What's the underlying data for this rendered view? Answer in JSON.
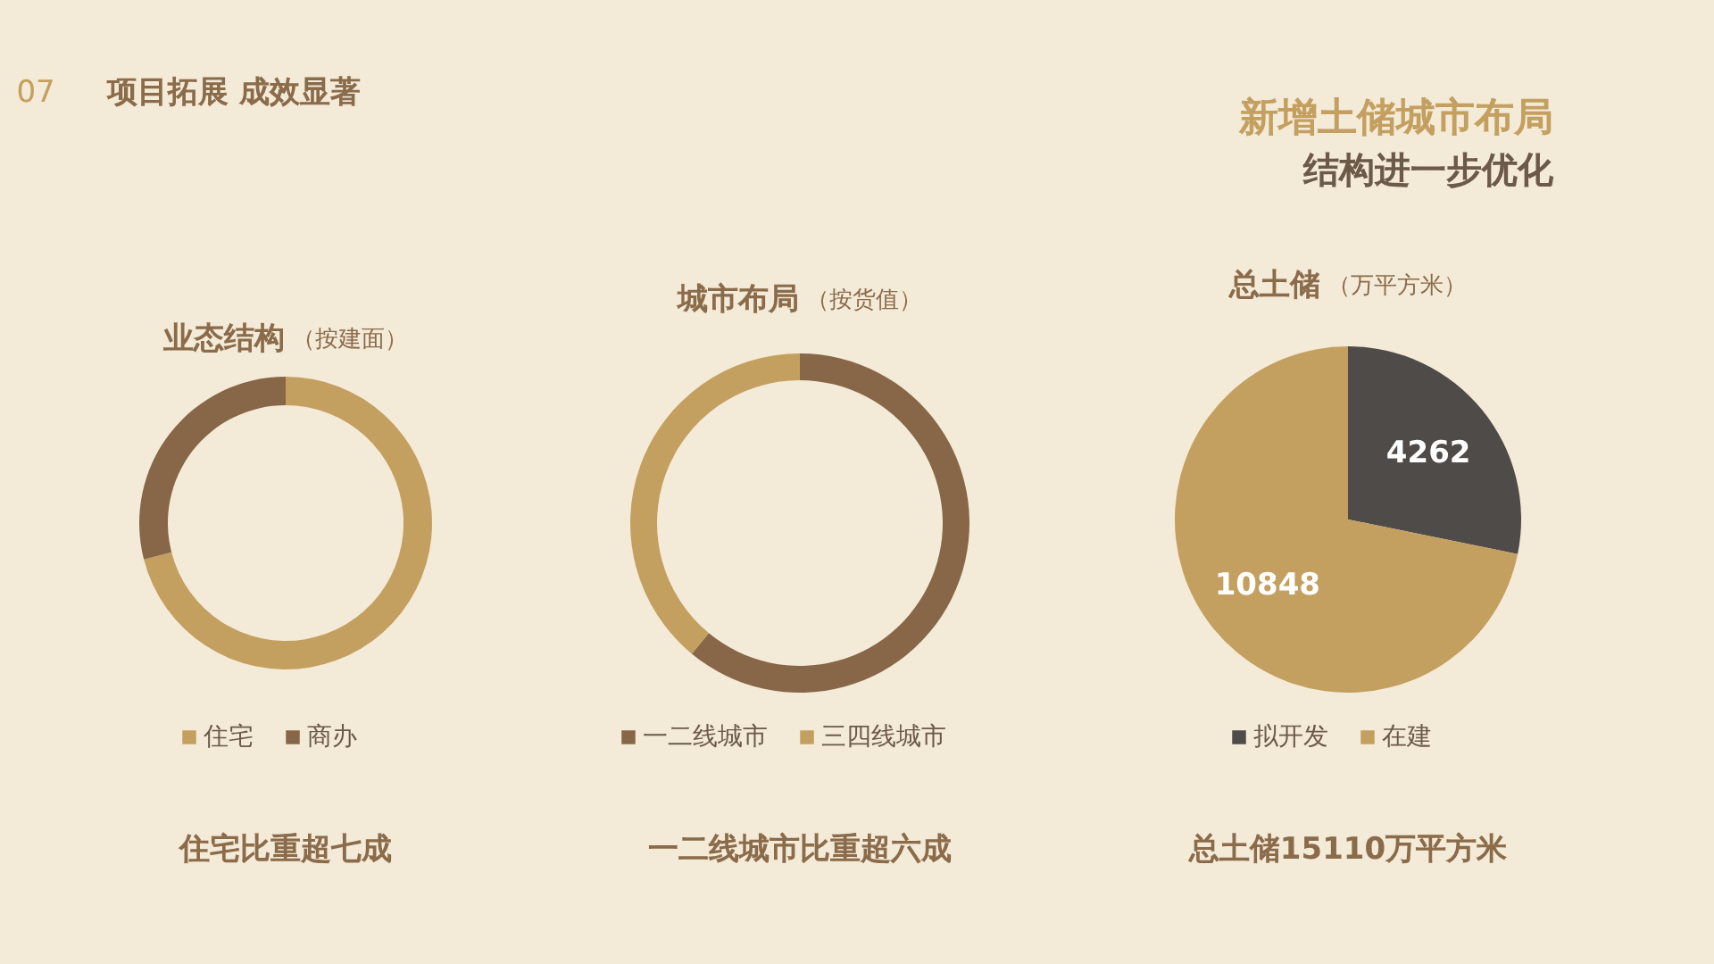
{
  "chart_data": [
    {
      "type": "donut",
      "title": "业态结构",
      "subtitle": "（按建面）",
      "categories": [
        "住宅",
        "商办"
      ],
      "values": [
        71,
        29
      ],
      "colors": [
        "#c4a060",
        "#876748"
      ],
      "legend": "bottom",
      "annotations": [
        "07",
        "项目拓展 成效显著",
        "住宅比重超七成"
      ]
    },
    {
      "type": "donut",
      "title": "城市布局",
      "subtitle": "（按货值）",
      "categories": [
        "一二线城市",
        "三四线城市"
      ],
      "values": [
        61,
        39
      ],
      "colors": [
        "#876748",
        "#c4a060"
      ],
      "legend": "bottom",
      "annotations": [
        "一二线城市比重超六成"
      ]
    },
    {
      "type": "pie",
      "title": "总土储",
      "subtitle": "（万平方米）",
      "categories": [
        "拟开发",
        "在建"
      ],
      "values": [
        4262,
        10848
      ],
      "colors": [
        "#4f4b48",
        "#c4a060"
      ],
      "legend": "bottom",
      "data_labels": true,
      "annotations": [
        "新增土储城市布局",
        "结构进一步优化",
        "总土储15110万平方米"
      ]
    }
  ]
}
